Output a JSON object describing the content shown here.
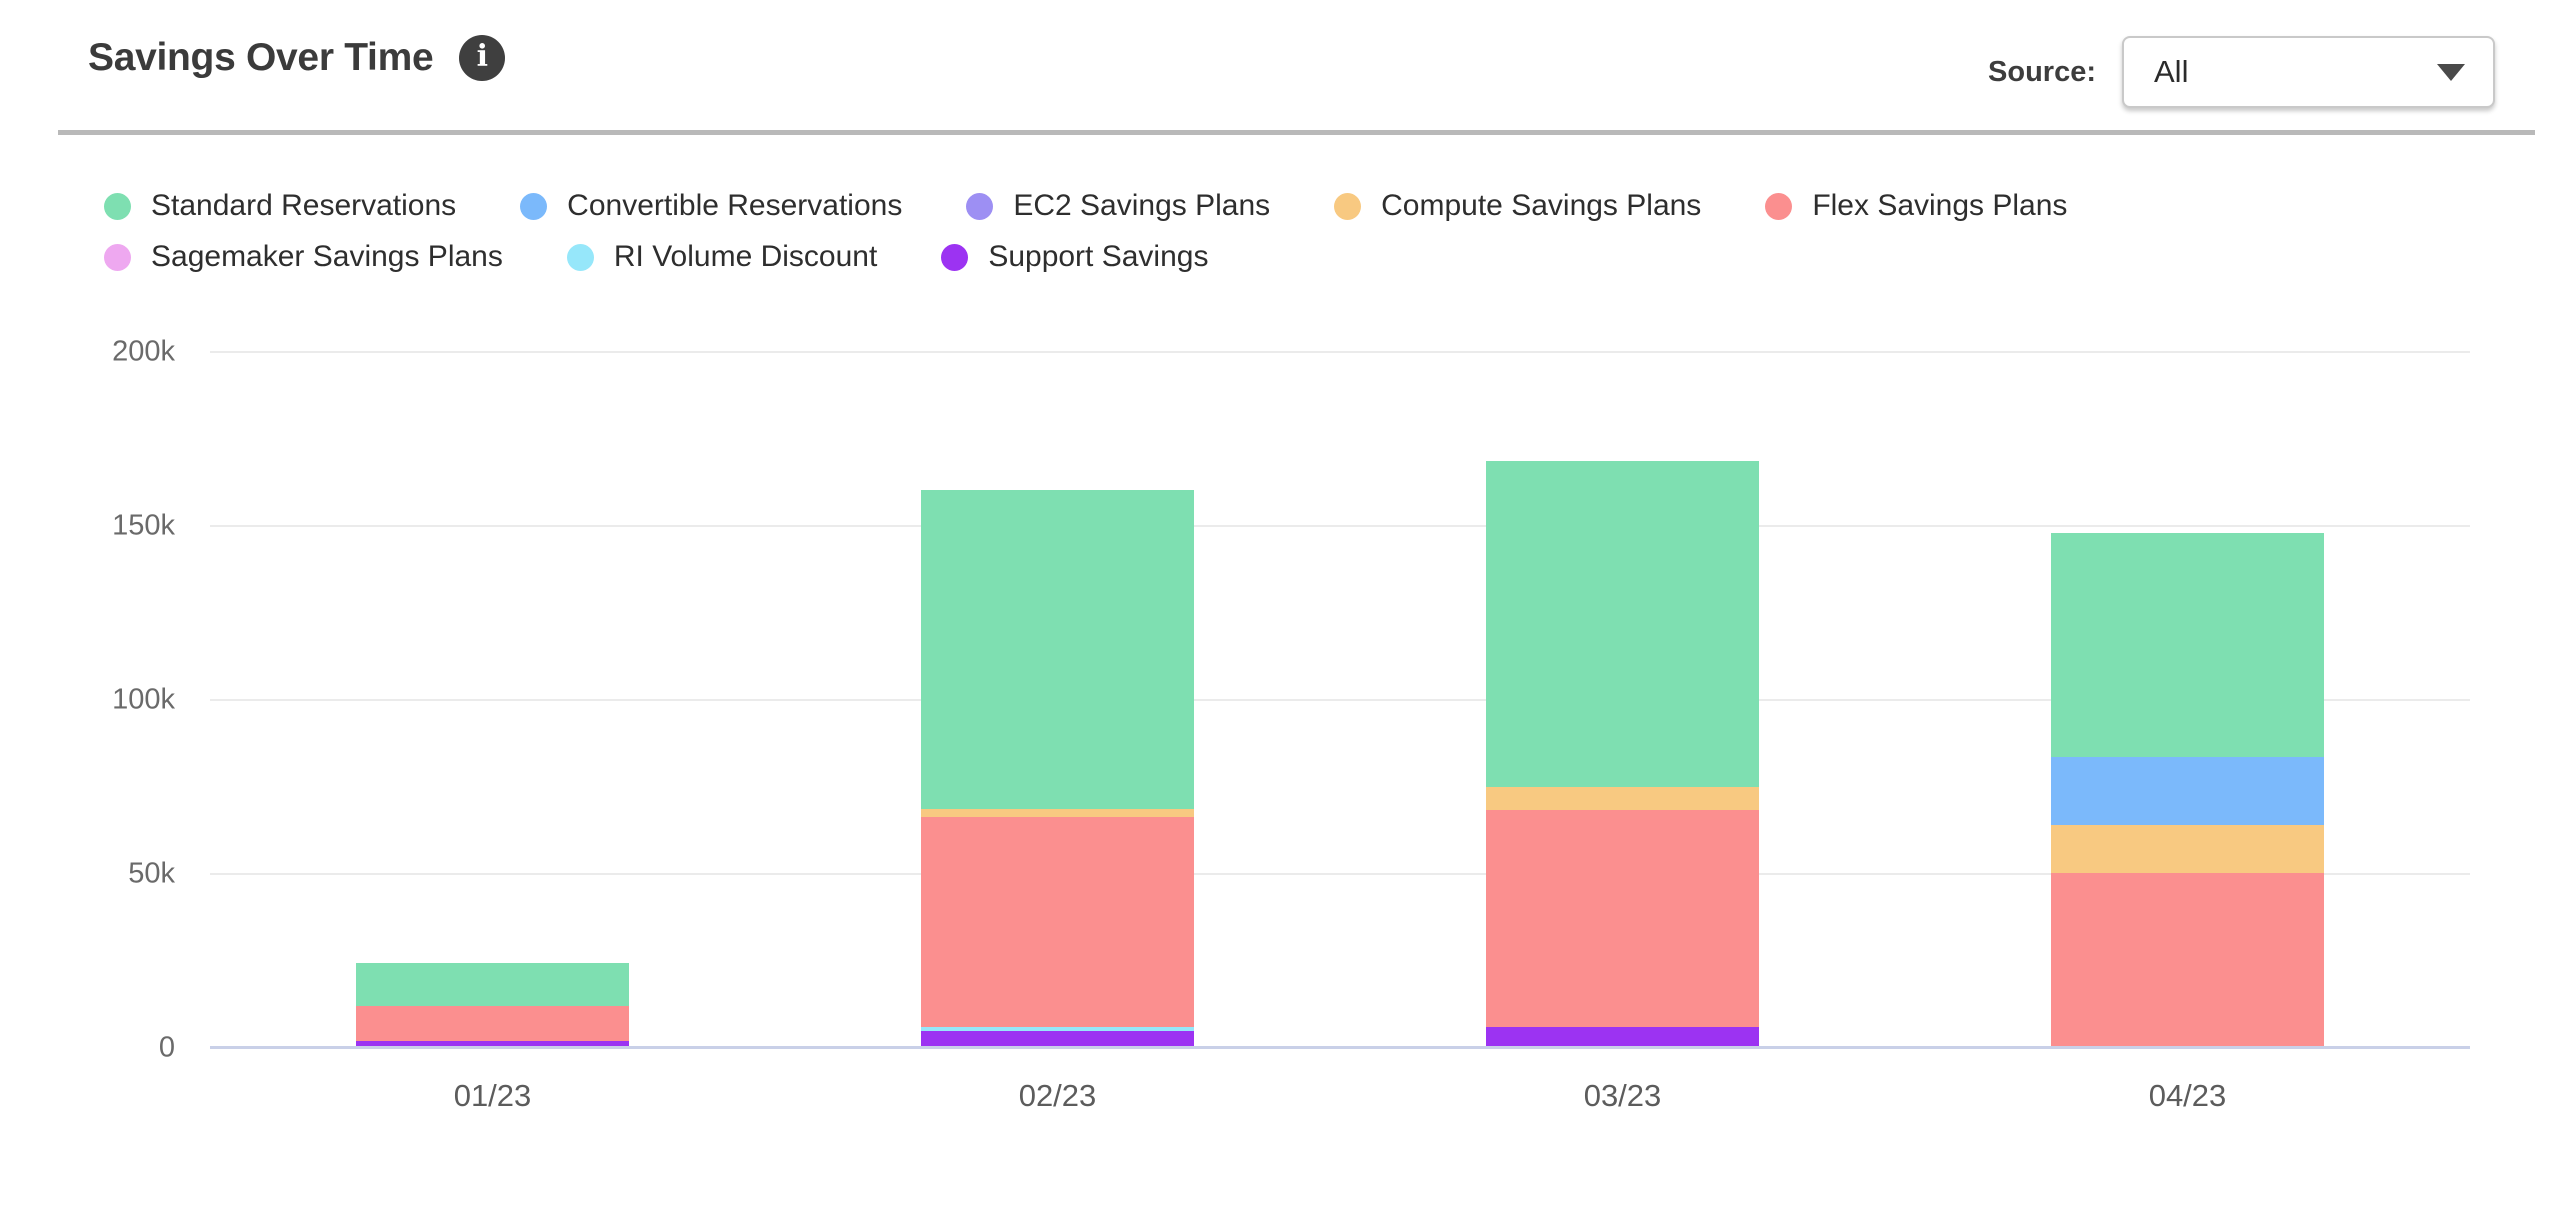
{
  "header": {
    "title": "Savings Over Time",
    "info_icon_glyph": "i",
    "source_label": "Source:",
    "source_value": "All"
  },
  "chart_data": {
    "type": "bar",
    "stacked": true,
    "title": "Savings Over Time",
    "unit": "k (thousands)",
    "categories": [
      "01/23",
      "02/23",
      "03/23",
      "04/23"
    ],
    "series": [
      {
        "name": "Standard Reservations",
        "color": "#7EDFB1",
        "values": [
          12.4,
          91.6,
          93.8,
          64.3
        ]
      },
      {
        "name": "Convertible Reservations",
        "color": "#7BB9FB",
        "values": [
          0,
          0,
          0,
          19.4
        ]
      },
      {
        "name": "EC2 Savings Plans",
        "color": "#9D8FF3",
        "values": [
          0,
          0,
          0,
          0
        ]
      },
      {
        "name": "Compute Savings Plans",
        "color": "#F8C981",
        "values": [
          0,
          2.5,
          6.7,
          13.9
        ]
      },
      {
        "name": "Flex Savings Plans",
        "color": "#FB8F8F",
        "values": [
          10.1,
          60.3,
          62.3,
          49.7
        ]
      },
      {
        "name": "Sagemaker Savings Plans",
        "color": "#EEA8F0",
        "values": [
          0,
          0,
          0,
          0
        ]
      },
      {
        "name": "RI Volume Discount",
        "color": "#96E7FA",
        "values": [
          0,
          1.2,
          0,
          0
        ]
      },
      {
        "name": "Support Savings",
        "color": "#9C33F2",
        "values": [
          1.4,
          4.2,
          5.4,
          0
        ]
      }
    ],
    "stack_order_bottom_to_top": [
      "Support Savings",
      "RI Volume Discount",
      "Sagemaker Savings Plans",
      "Flex Savings Plans",
      "Compute Savings Plans",
      "EC2 Savings Plans",
      "Convertible Reservations",
      "Standard Reservations"
    ],
    "ylim": [
      0,
      200
    ],
    "yticks": [
      {
        "value": 0,
        "label": "0"
      },
      {
        "value": 50,
        "label": "50k"
      },
      {
        "value": 100,
        "label": "100k"
      },
      {
        "value": 150,
        "label": "150k"
      },
      {
        "value": 200,
        "label": "200k"
      }
    ],
    "grid": true,
    "legend_position": "top",
    "legend_rows": [
      5,
      3
    ],
    "axis_line_color": "#C9D0E8",
    "gridline_color": "#EBEBEB"
  }
}
